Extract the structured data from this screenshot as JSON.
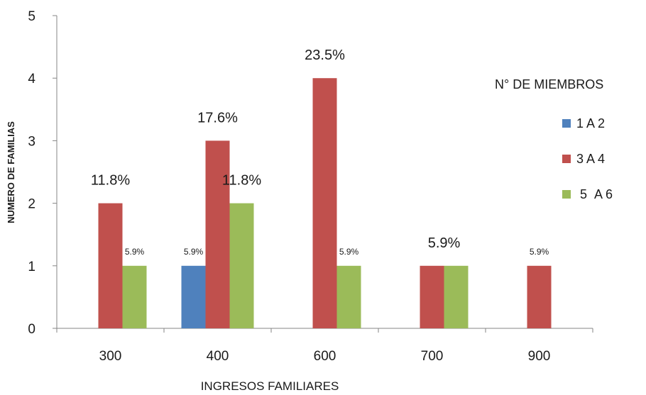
{
  "chart_data": {
    "type": "bar",
    "title": "",
    "xlabel": "INGRESOS FAMILIARES",
    "ylabel": "NUMERO DE FAMILIAS",
    "ylim": [
      0,
      5
    ],
    "yticks": [
      "0",
      "1",
      "2",
      "3",
      "4",
      "5"
    ],
    "categories": [
      "300",
      "400",
      "600",
      "700",
      "900"
    ],
    "legend_title": "N° DE MIEMBROS",
    "legend_position": "right",
    "grid": false,
    "series": [
      {
        "name": "1 A 2",
        "color": "#4f81bd",
        "values": [
          0,
          1,
          0,
          0,
          0
        ]
      },
      {
        "name": "3 A 4",
        "color": "#c0504d",
        "values": [
          2,
          3,
          4,
          1,
          1
        ]
      },
      {
        "name": " 5  A 6",
        "color": "#9bbb59",
        "values": [
          1,
          2,
          1,
          1,
          0
        ]
      }
    ],
    "data_labels": [
      {
        "category": "300",
        "text": "11.8%",
        "size": "large"
      },
      {
        "category": "300",
        "text": "5.9%",
        "size": "small"
      },
      {
        "category": "400",
        "text": "5.9%",
        "size": "small"
      },
      {
        "category": "400",
        "text": "17.6%",
        "size": "large"
      },
      {
        "category": "400",
        "text": "11.8%",
        "size": "large"
      },
      {
        "category": "600",
        "text": "23.5%",
        "size": "large"
      },
      {
        "category": "600",
        "text": "5.9%",
        "size": "small"
      },
      {
        "category": "700",
        "text": "5.9%",
        "size": "large"
      },
      {
        "category": "900",
        "text": "5.9%",
        "size": "small"
      }
    ]
  }
}
